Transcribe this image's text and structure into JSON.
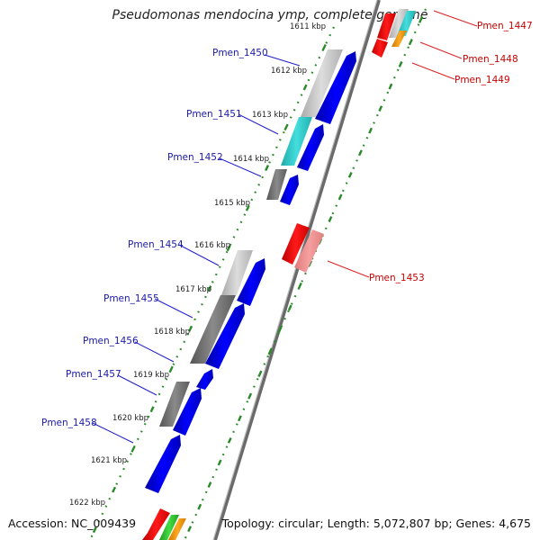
{
  "title": "Pseudomonas mendocina ymp, complete genome",
  "accession": "Accession: NC_009439",
  "topology": "Topology: circular; Length: 5,072,807 bp; Genes: 4,675",
  "colors": {
    "forward_label": "#1a1aaa",
    "reverse_label": "#cc0000",
    "forward_gene": "#0000ee",
    "reverse_gene": "#ee0000",
    "tick": "#2a8a2a",
    "backbone": "#888888"
  },
  "kbp_ticks": [
    {
      "label": "1611 kbp"
    },
    {
      "label": "1612 kbp"
    },
    {
      "label": "1613 kbp"
    },
    {
      "label": "1614 kbp"
    },
    {
      "label": "1615 kbp"
    },
    {
      "label": "1616 kbp"
    },
    {
      "label": "1617 kbp"
    },
    {
      "label": "1618 kbp"
    },
    {
      "label": "1619 kbp"
    },
    {
      "label": "1620 kbp"
    },
    {
      "label": "1621 kbp"
    },
    {
      "label": "1622 kbp"
    }
  ],
  "forward_genes": [
    {
      "label": "Pmen_1450"
    },
    {
      "label": "Pmen_1451"
    },
    {
      "label": "Pmen_1452"
    },
    {
      "label": "Pmen_1454"
    },
    {
      "label": "Pmen_1455"
    },
    {
      "label": "Pmen_1456"
    },
    {
      "label": "Pmen_1457"
    },
    {
      "label": "Pmen_1458"
    }
  ],
  "reverse_genes": [
    {
      "label": "Pmen_1447"
    },
    {
      "label": "Pmen_1448"
    },
    {
      "label": "Pmen_1449"
    },
    {
      "label": "Pmen_1453"
    }
  ]
}
